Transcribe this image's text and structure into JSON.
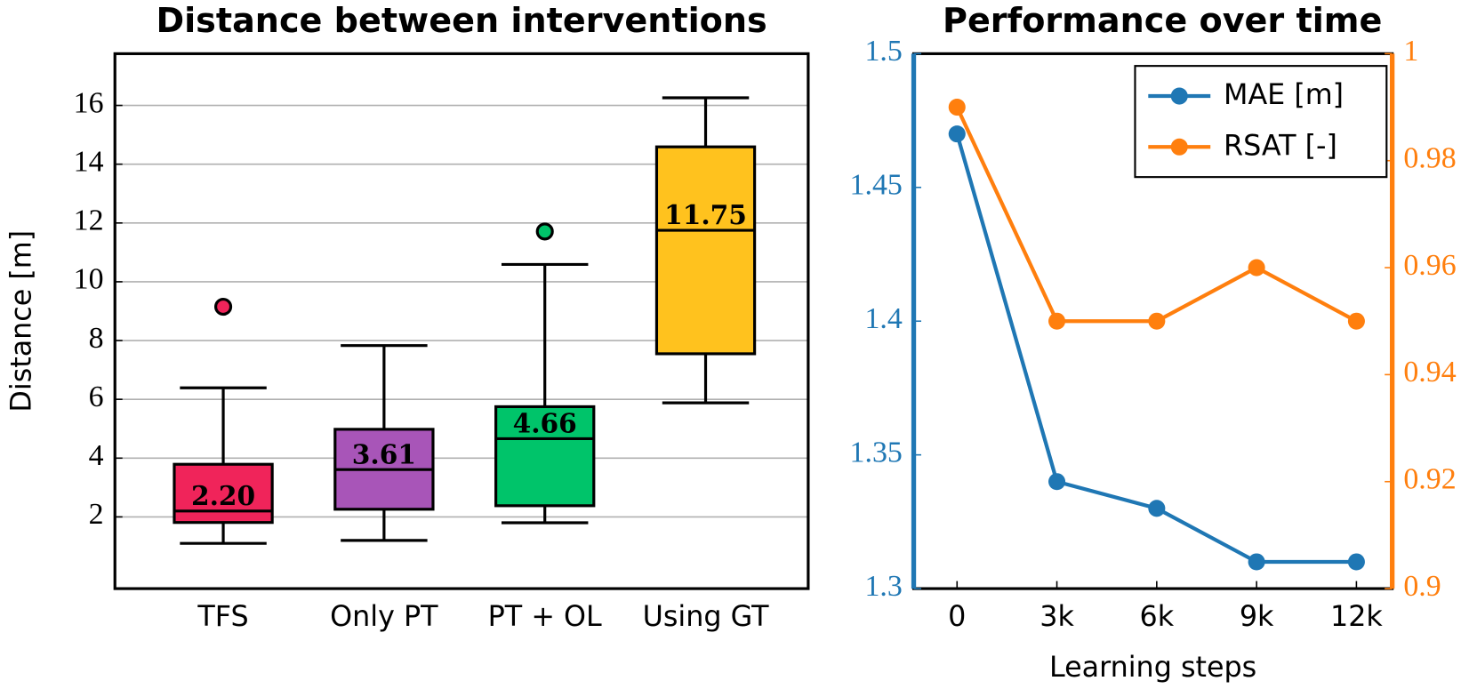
{
  "chart_data": [
    {
      "type": "box",
      "title": "Distance between interventions",
      "ylabel": "Distance [m]",
      "categories": [
        "TFS",
        "Only PT",
        "PT + OL",
        "Using GT"
      ],
      "colors": [
        "#f0245a",
        "#a855b8",
        "#00c46a",
        "#ffc21e"
      ],
      "whisker_low": [
        1.1,
        1.2,
        1.8,
        5.88
      ],
      "q1": [
        1.81,
        2.26,
        2.38,
        7.55
      ],
      "median": [
        2.2,
        3.61,
        4.66,
        11.75
      ],
      "median_labels": [
        "2.20",
        "3.61",
        "4.66",
        "11.75"
      ],
      "q3": [
        3.79,
        4.98,
        5.75,
        14.59
      ],
      "whisker_high": [
        6.39,
        7.83,
        10.59,
        16.26
      ],
      "outliers": [
        [
          9.15
        ],
        [],
        [
          11.71
        ],
        []
      ],
      "ylim": [
        -0.44,
        17.76
      ],
      "yticks": [
        2,
        4,
        6,
        8,
        10,
        12,
        14,
        16
      ],
      "grid": true
    },
    {
      "type": "line",
      "title": "Performance over time",
      "xlabel": "Learning steps",
      "categories": [
        "0",
        "3k",
        "6k",
        "9k",
        "12k"
      ],
      "series": [
        {
          "name": "MAE [m]",
          "color": "#1f77b4",
          "values": [
            1.47,
            1.34,
            1.33,
            1.31,
            1.31
          ]
        },
        {
          "name": "RSAT [-]",
          "color": "#ff7f0e",
          "values": [
            0.99,
            0.95,
            0.95,
            0.96,
            0.95
          ],
          "axis": "y2"
        }
      ],
      "ylim": [
        1.3,
        1.5
      ],
      "yticks": [
        1.3,
        1.35,
        1.4,
        1.45,
        1.5
      ],
      "y2lim": [
        0.9,
        1
      ],
      "y2ticks": [
        0.9,
        0.92,
        0.94,
        0.96,
        0.98,
        1
      ],
      "grid": false,
      "legend": "top-right"
    }
  ]
}
